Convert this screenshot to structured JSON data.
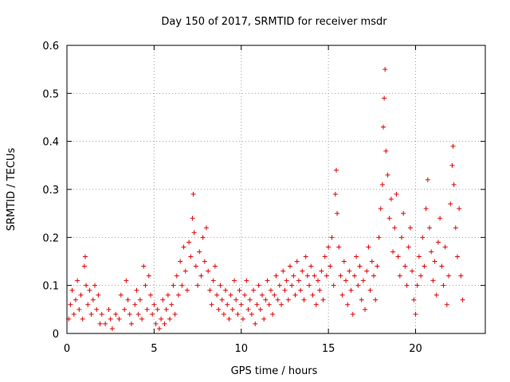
{
  "chart_data": {
    "type": "scatter",
    "title": "Day 150 of 2017, SRMTID for receiver msdr",
    "xlabel": "GPS time / hours",
    "ylabel": "SRMTID / TECUs",
    "xlim": [
      0,
      24
    ],
    "ylim": [
      0,
      0.6
    ],
    "x_ticks": [
      0,
      5,
      10,
      15,
      20
    ],
    "x_tick_labels": [
      "0",
      "5",
      "10",
      "15",
      "20"
    ],
    "y_ticks": [
      0,
      0.1,
      0.2,
      0.3,
      0.4,
      0.5,
      0.6
    ],
    "y_tick_labels": [
      "0",
      "0.1",
      "0.2",
      "0.3",
      "0.4",
      "0.5",
      "0.6"
    ],
    "grid": true,
    "marker": "plus",
    "color": "#e00000",
    "series": [
      {
        "points": [
          [
            0.1,
            0.03
          ],
          [
            0.2,
            0.06
          ],
          [
            0.3,
            0.09
          ],
          [
            0.4,
            0.04
          ],
          [
            0.5,
            0.07
          ],
          [
            0.6,
            0.11
          ],
          [
            0.7,
            0.05
          ],
          [
            0.8,
            0.08
          ],
          [
            0.9,
            0.03
          ],
          [
            1.0,
            0.14
          ],
          [
            1.05,
            0.16
          ],
          [
            1.1,
            0.1
          ],
          [
            1.2,
            0.06
          ],
          [
            1.3,
            0.09
          ],
          [
            1.4,
            0.04
          ],
          [
            1.5,
            0.07
          ],
          [
            1.6,
            0.1
          ],
          [
            1.7,
            0.05
          ],
          [
            1.8,
            0.08
          ],
          [
            1.9,
            0.02
          ],
          [
            2.0,
            0.04
          ],
          [
            2.2,
            0.02
          ],
          [
            2.4,
            0.05
          ],
          [
            2.5,
            0.03
          ],
          [
            2.6,
            0.01
          ],
          [
            2.8,
            0.04
          ],
          [
            3.0,
            0.03
          ],
          [
            3.1,
            0.08
          ],
          [
            3.3,
            0.05
          ],
          [
            3.4,
            0.11
          ],
          [
            3.5,
            0.07
          ],
          [
            3.6,
            0.04
          ],
          [
            3.7,
            0.02
          ],
          [
            3.9,
            0.06
          ],
          [
            4.0,
            0.09
          ],
          [
            4.1,
            0.04
          ],
          [
            4.2,
            0.07
          ],
          [
            4.3,
            0.03
          ],
          [
            4.4,
            0.14
          ],
          [
            4.5,
            0.1
          ],
          [
            4.6,
            0.05
          ],
          [
            4.7,
            0.12
          ],
          [
            4.8,
            0.08
          ],
          [
            4.9,
            0.04
          ],
          [
            5.0,
            0.06
          ],
          [
            5.1,
            0.02
          ],
          [
            5.2,
            0.05
          ],
          [
            5.3,
            0.01
          ],
          [
            5.4,
            0.03
          ],
          [
            5.5,
            0.07
          ],
          [
            5.6,
            0.02
          ],
          [
            5.7,
            0.05
          ],
          [
            5.8,
            0.08
          ],
          [
            5.9,
            0.03
          ],
          [
            6.0,
            0.06
          ],
          [
            6.1,
            0.1
          ],
          [
            6.2,
            0.04
          ],
          [
            6.3,
            0.12
          ],
          [
            6.4,
            0.08
          ],
          [
            6.5,
            0.15
          ],
          [
            6.6,
            0.1
          ],
          [
            6.7,
            0.18
          ],
          [
            6.8,
            0.13
          ],
          [
            6.9,
            0.09
          ],
          [
            7.0,
            0.19
          ],
          [
            7.1,
            0.16
          ],
          [
            7.2,
            0.24
          ],
          [
            7.25,
            0.29
          ],
          [
            7.3,
            0.21
          ],
          [
            7.4,
            0.14
          ],
          [
            7.5,
            0.1
          ],
          [
            7.6,
            0.17
          ],
          [
            7.7,
            0.12
          ],
          [
            7.8,
            0.2
          ],
          [
            7.9,
            0.15
          ],
          [
            8.0,
            0.22
          ],
          [
            8.1,
            0.13
          ],
          [
            8.2,
            0.09
          ],
          [
            8.3,
            0.06
          ],
          [
            8.4,
            0.11
          ],
          [
            8.5,
            0.14
          ],
          [
            8.6,
            0.08
          ],
          [
            8.7,
            0.05
          ],
          [
            8.8,
            0.1
          ],
          [
            8.9,
            0.07
          ],
          [
            9.0,
            0.04
          ],
          [
            9.1,
            0.09
          ],
          [
            9.2,
            0.06
          ],
          [
            9.3,
            0.03
          ],
          [
            9.4,
            0.08
          ],
          [
            9.5,
            0.05
          ],
          [
            9.6,
            0.11
          ],
          [
            9.7,
            0.07
          ],
          [
            9.8,
            0.04
          ],
          [
            9.9,
            0.09
          ],
          [
            10.0,
            0.06
          ],
          [
            10.1,
            0.03
          ],
          [
            10.2,
            0.08
          ],
          [
            10.3,
            0.11
          ],
          [
            10.4,
            0.05
          ],
          [
            10.5,
            0.07
          ],
          [
            10.6,
            0.04
          ],
          [
            10.7,
            0.09
          ],
          [
            10.8,
            0.02
          ],
          [
            10.9,
            0.06
          ],
          [
            11.0,
            0.1
          ],
          [
            11.1,
            0.05
          ],
          [
            11.2,
            0.08
          ],
          [
            11.3,
            0.03
          ],
          [
            11.4,
            0.07
          ],
          [
            11.5,
            0.11
          ],
          [
            11.6,
            0.06
          ],
          [
            11.7,
            0.09
          ],
          [
            11.8,
            0.04
          ],
          [
            11.9,
            0.08
          ],
          [
            12.0,
            0.12
          ],
          [
            12.1,
            0.07
          ],
          [
            12.2,
            0.1
          ],
          [
            12.3,
            0.06
          ],
          [
            12.4,
            0.13
          ],
          [
            12.5,
            0.09
          ],
          [
            12.6,
            0.11
          ],
          [
            12.7,
            0.07
          ],
          [
            12.8,
            0.14
          ],
          [
            12.9,
            0.1
          ],
          [
            13.0,
            0.12
          ],
          [
            13.1,
            0.08
          ],
          [
            13.2,
            0.15
          ],
          [
            13.3,
            0.11
          ],
          [
            13.4,
            0.09
          ],
          [
            13.5,
            0.13
          ],
          [
            13.6,
            0.07
          ],
          [
            13.7,
            0.16
          ],
          [
            13.8,
            0.12
          ],
          [
            13.9,
            0.1
          ],
          [
            14.0,
            0.14
          ],
          [
            14.1,
            0.08
          ],
          [
            14.2,
            0.12
          ],
          [
            14.3,
            0.06
          ],
          [
            14.4,
            0.11
          ],
          [
            14.5,
            0.09
          ],
          [
            14.6,
            0.13
          ],
          [
            14.7,
            0.07
          ],
          [
            14.8,
            0.16
          ],
          [
            14.9,
            0.12
          ],
          [
            15.0,
            0.18
          ],
          [
            15.1,
            0.14
          ],
          [
            15.2,
            0.2
          ],
          [
            15.3,
            0.1
          ],
          [
            15.4,
            0.29
          ],
          [
            15.45,
            0.34
          ],
          [
            15.5,
            0.25
          ],
          [
            15.6,
            0.18
          ],
          [
            15.7,
            0.12
          ],
          [
            15.8,
            0.08
          ],
          [
            15.9,
            0.15
          ],
          [
            16.0,
            0.11
          ],
          [
            16.1,
            0.06
          ],
          [
            16.2,
            0.13
          ],
          [
            16.3,
            0.09
          ],
          [
            16.4,
            0.04
          ],
          [
            16.5,
            0.12
          ],
          [
            16.6,
            0.16
          ],
          [
            16.7,
            0.1
          ],
          [
            16.8,
            0.14
          ],
          [
            16.9,
            0.07
          ],
          [
            17.0,
            0.11
          ],
          [
            17.1,
            0.05
          ],
          [
            17.2,
            0.13
          ],
          [
            17.3,
            0.18
          ],
          [
            17.4,
            0.09
          ],
          [
            17.5,
            0.15
          ],
          [
            17.6,
            0.12
          ],
          [
            17.7,
            0.07
          ],
          [
            17.8,
            0.14
          ],
          [
            17.9,
            0.2
          ],
          [
            18.0,
            0.26
          ],
          [
            18.1,
            0.31
          ],
          [
            18.15,
            0.43
          ],
          [
            18.2,
            0.49
          ],
          [
            18.25,
            0.55
          ],
          [
            18.3,
            0.38
          ],
          [
            18.4,
            0.33
          ],
          [
            18.5,
            0.24
          ],
          [
            18.6,
            0.28
          ],
          [
            18.7,
            0.17
          ],
          [
            18.8,
            0.22
          ],
          [
            18.9,
            0.29
          ],
          [
            19.0,
            0.16
          ],
          [
            19.1,
            0.12
          ],
          [
            19.2,
            0.2
          ],
          [
            19.3,
            0.25
          ],
          [
            19.4,
            0.14
          ],
          [
            19.5,
            0.1
          ],
          [
            19.6,
            0.18
          ],
          [
            19.7,
            0.22
          ],
          [
            19.8,
            0.13
          ],
          [
            19.9,
            0.07
          ],
          [
            20.0,
            0.04
          ],
          [
            20.1,
            0.1
          ],
          [
            20.2,
            0.16
          ],
          [
            20.3,
            0.12
          ],
          [
            20.4,
            0.2
          ],
          [
            20.5,
            0.14
          ],
          [
            20.6,
            0.26
          ],
          [
            20.7,
            0.32
          ],
          [
            20.8,
            0.22
          ],
          [
            20.9,
            0.17
          ],
          [
            21.0,
            0.11
          ],
          [
            21.1,
            0.15
          ],
          [
            21.2,
            0.08
          ],
          [
            21.3,
            0.19
          ],
          [
            21.4,
            0.24
          ],
          [
            21.5,
            0.14
          ],
          [
            21.6,
            0.1
          ],
          [
            21.7,
            0.18
          ],
          [
            21.8,
            0.06
          ],
          [
            21.9,
            0.12
          ],
          [
            22.0,
            0.27
          ],
          [
            22.1,
            0.35
          ],
          [
            22.15,
            0.39
          ],
          [
            22.2,
            0.31
          ],
          [
            22.3,
            0.22
          ],
          [
            22.4,
            0.16
          ],
          [
            22.5,
            0.26
          ],
          [
            22.6,
            0.12
          ],
          [
            22.7,
            0.07
          ]
        ]
      }
    ]
  }
}
